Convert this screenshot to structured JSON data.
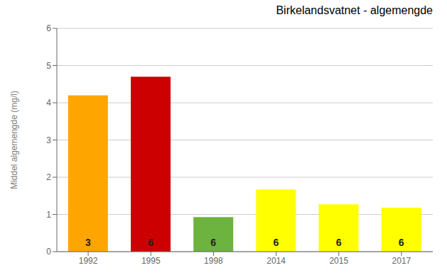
{
  "chart_data": {
    "type": "bar",
    "title": "Birkelandsvatnet - algemengde",
    "ylabel": "Middel algemengde  (mg/l)",
    "categories": [
      "1992",
      "1995",
      "1998",
      "2014",
      "2015",
      "2017"
    ],
    "values": [
      4.2,
      4.7,
      0.93,
      1.67,
      1.27,
      1.18
    ],
    "colors": [
      "#FFA500",
      "#CC0000",
      "#6DB33F",
      "#FFFF00",
      "#FFFF00",
      "#FFFF00"
    ],
    "annotations": [
      "3",
      "6",
      "6",
      "6",
      "6",
      "6"
    ],
    "ylim": [
      0,
      6
    ],
    "yticks": [
      0,
      1,
      2,
      3,
      4,
      5,
      6
    ],
    "grid": true
  }
}
